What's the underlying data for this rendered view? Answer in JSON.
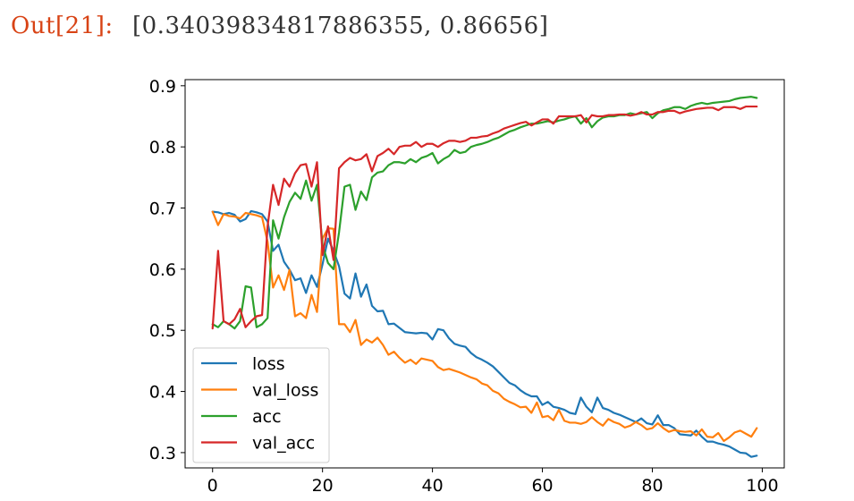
{
  "cell": {
    "prompt": "Out[21]:",
    "value": "[0.34039834817886355, 0.86656]"
  },
  "chart_data": {
    "type": "line",
    "title": "",
    "xlabel": "",
    "ylabel": "",
    "xlim": [
      -5,
      104
    ],
    "ylim": [
      0.275,
      0.91
    ],
    "xticks": [
      0,
      20,
      40,
      60,
      80,
      100
    ],
    "yticks": [
      0.3,
      0.4,
      0.5,
      0.6,
      0.7,
      0.8,
      0.9
    ],
    "xtick_labels": [
      "0",
      "20",
      "40",
      "60",
      "80",
      "100"
    ],
    "ytick_labels": [
      "0.3",
      "0.4",
      "0.5",
      "0.6",
      "0.7",
      "0.8",
      "0.9"
    ],
    "grid": false,
    "legend_position": "lower-left",
    "x": [
      0,
      1,
      2,
      3,
      4,
      5,
      6,
      7,
      8,
      9,
      10,
      11,
      12,
      13,
      14,
      15,
      16,
      17,
      18,
      19,
      20,
      21,
      22,
      23,
      24,
      25,
      26,
      27,
      28,
      29,
      30,
      31,
      32,
      33,
      34,
      35,
      36,
      37,
      38,
      39,
      40,
      41,
      42,
      43,
      44,
      45,
      46,
      47,
      48,
      49,
      50,
      51,
      52,
      53,
      54,
      55,
      56,
      57,
      58,
      59,
      60,
      61,
      62,
      63,
      64,
      65,
      66,
      67,
      68,
      69,
      70,
      71,
      72,
      73,
      74,
      75,
      76,
      77,
      78,
      79,
      80,
      81,
      82,
      83,
      84,
      85,
      86,
      87,
      88,
      89,
      90,
      91,
      92,
      93,
      94,
      95,
      96,
      97,
      98,
      99
    ],
    "series": [
      {
        "name": "loss",
        "color": "#1f77b4",
        "values": [
          0.694,
          0.693,
          0.69,
          0.692,
          0.689,
          0.678,
          0.682,
          0.695,
          0.693,
          0.69,
          0.678,
          0.63,
          0.64,
          0.612,
          0.599,
          0.582,
          0.585,
          0.561,
          0.59,
          0.571,
          0.608,
          0.65,
          0.63,
          0.605,
          0.56,
          0.552,
          0.593,
          0.555,
          0.575,
          0.54,
          0.531,
          0.532,
          0.51,
          0.511,
          0.504,
          0.497,
          0.496,
          0.495,
          0.496,
          0.495,
          0.485,
          0.502,
          0.5,
          0.487,
          0.478,
          0.475,
          0.473,
          0.463,
          0.456,
          0.452,
          0.447,
          0.441,
          0.432,
          0.423,
          0.414,
          0.41,
          0.402,
          0.396,
          0.392,
          0.392,
          0.378,
          0.383,
          0.375,
          0.373,
          0.37,
          0.365,
          0.363,
          0.39,
          0.375,
          0.366,
          0.39,
          0.373,
          0.37,
          0.365,
          0.362,
          0.358,
          0.354,
          0.35,
          0.356,
          0.348,
          0.346,
          0.361,
          0.345,
          0.345,
          0.34,
          0.33,
          0.329,
          0.328,
          0.336,
          0.326,
          0.318,
          0.318,
          0.315,
          0.313,
          0.31,
          0.305,
          0.3,
          0.299,
          0.293,
          0.295
        ]
      },
      {
        "name": "val_loss",
        "color": "#ff7f0e",
        "values": [
          0.694,
          0.672,
          0.69,
          0.687,
          0.686,
          0.683,
          0.692,
          0.69,
          0.688,
          0.685,
          0.645,
          0.57,
          0.59,
          0.566,
          0.599,
          0.523,
          0.528,
          0.52,
          0.558,
          0.53,
          0.65,
          0.667,
          0.666,
          0.51,
          0.51,
          0.497,
          0.517,
          0.476,
          0.485,
          0.48,
          0.488,
          0.476,
          0.46,
          0.465,
          0.455,
          0.447,
          0.452,
          0.445,
          0.454,
          0.452,
          0.45,
          0.44,
          0.435,
          0.437,
          0.434,
          0.431,
          0.427,
          0.423,
          0.42,
          0.413,
          0.41,
          0.401,
          0.397,
          0.388,
          0.383,
          0.379,
          0.374,
          0.375,
          0.365,
          0.382,
          0.358,
          0.36,
          0.353,
          0.37,
          0.352,
          0.349,
          0.349,
          0.347,
          0.35,
          0.358,
          0.35,
          0.344,
          0.355,
          0.35,
          0.347,
          0.341,
          0.344,
          0.35,
          0.345,
          0.338,
          0.34,
          0.348,
          0.34,
          0.334,
          0.337,
          0.335,
          0.334,
          0.335,
          0.328,
          0.338,
          0.326,
          0.325,
          0.332,
          0.319,
          0.325,
          0.333,
          0.336,
          0.331,
          0.326,
          0.34
        ]
      },
      {
        "name": "acc",
        "color": "#2ca02c",
        "values": [
          0.51,
          0.505,
          0.515,
          0.51,
          0.503,
          0.515,
          0.572,
          0.57,
          0.505,
          0.51,
          0.52,
          0.68,
          0.65,
          0.685,
          0.71,
          0.725,
          0.715,
          0.745,
          0.712,
          0.738,
          0.64,
          0.61,
          0.6,
          0.66,
          0.735,
          0.738,
          0.697,
          0.727,
          0.713,
          0.75,
          0.758,
          0.76,
          0.77,
          0.775,
          0.775,
          0.773,
          0.78,
          0.775,
          0.782,
          0.785,
          0.79,
          0.773,
          0.78,
          0.785,
          0.795,
          0.79,
          0.792,
          0.8,
          0.803,
          0.805,
          0.808,
          0.812,
          0.815,
          0.82,
          0.825,
          0.828,
          0.832,
          0.835,
          0.838,
          0.838,
          0.84,
          0.842,
          0.84,
          0.843,
          0.845,
          0.848,
          0.85,
          0.838,
          0.847,
          0.832,
          0.842,
          0.848,
          0.85,
          0.85,
          0.852,
          0.852,
          0.855,
          0.853,
          0.855,
          0.857,
          0.847,
          0.855,
          0.86,
          0.862,
          0.865,
          0.865,
          0.862,
          0.867,
          0.87,
          0.872,
          0.87,
          0.872,
          0.873,
          0.874,
          0.875,
          0.878,
          0.88,
          0.881,
          0.882,
          0.88
        ]
      },
      {
        "name": "val_acc",
        "color": "#d62728",
        "values": [
          0.503,
          0.63,
          0.515,
          0.51,
          0.518,
          0.535,
          0.505,
          0.515,
          0.523,
          0.525,
          0.67,
          0.738,
          0.705,
          0.748,
          0.735,
          0.757,
          0.77,
          0.772,
          0.735,
          0.775,
          0.623,
          0.67,
          0.615,
          0.765,
          0.775,
          0.782,
          0.778,
          0.78,
          0.788,
          0.76,
          0.785,
          0.79,
          0.797,
          0.788,
          0.8,
          0.802,
          0.802,
          0.808,
          0.8,
          0.805,
          0.805,
          0.8,
          0.806,
          0.81,
          0.81,
          0.808,
          0.81,
          0.815,
          0.815,
          0.817,
          0.818,
          0.822,
          0.825,
          0.83,
          0.833,
          0.836,
          0.839,
          0.841,
          0.835,
          0.84,
          0.845,
          0.845,
          0.838,
          0.85,
          0.85,
          0.85,
          0.85,
          0.852,
          0.84,
          0.852,
          0.85,
          0.85,
          0.852,
          0.852,
          0.853,
          0.853,
          0.851,
          0.853,
          0.857,
          0.853,
          0.853,
          0.857,
          0.857,
          0.859,
          0.859,
          0.855,
          0.858,
          0.86,
          0.862,
          0.863,
          0.864,
          0.864,
          0.86,
          0.865,
          0.865,
          0.865,
          0.862,
          0.866,
          0.866,
          0.866
        ]
      }
    ]
  }
}
